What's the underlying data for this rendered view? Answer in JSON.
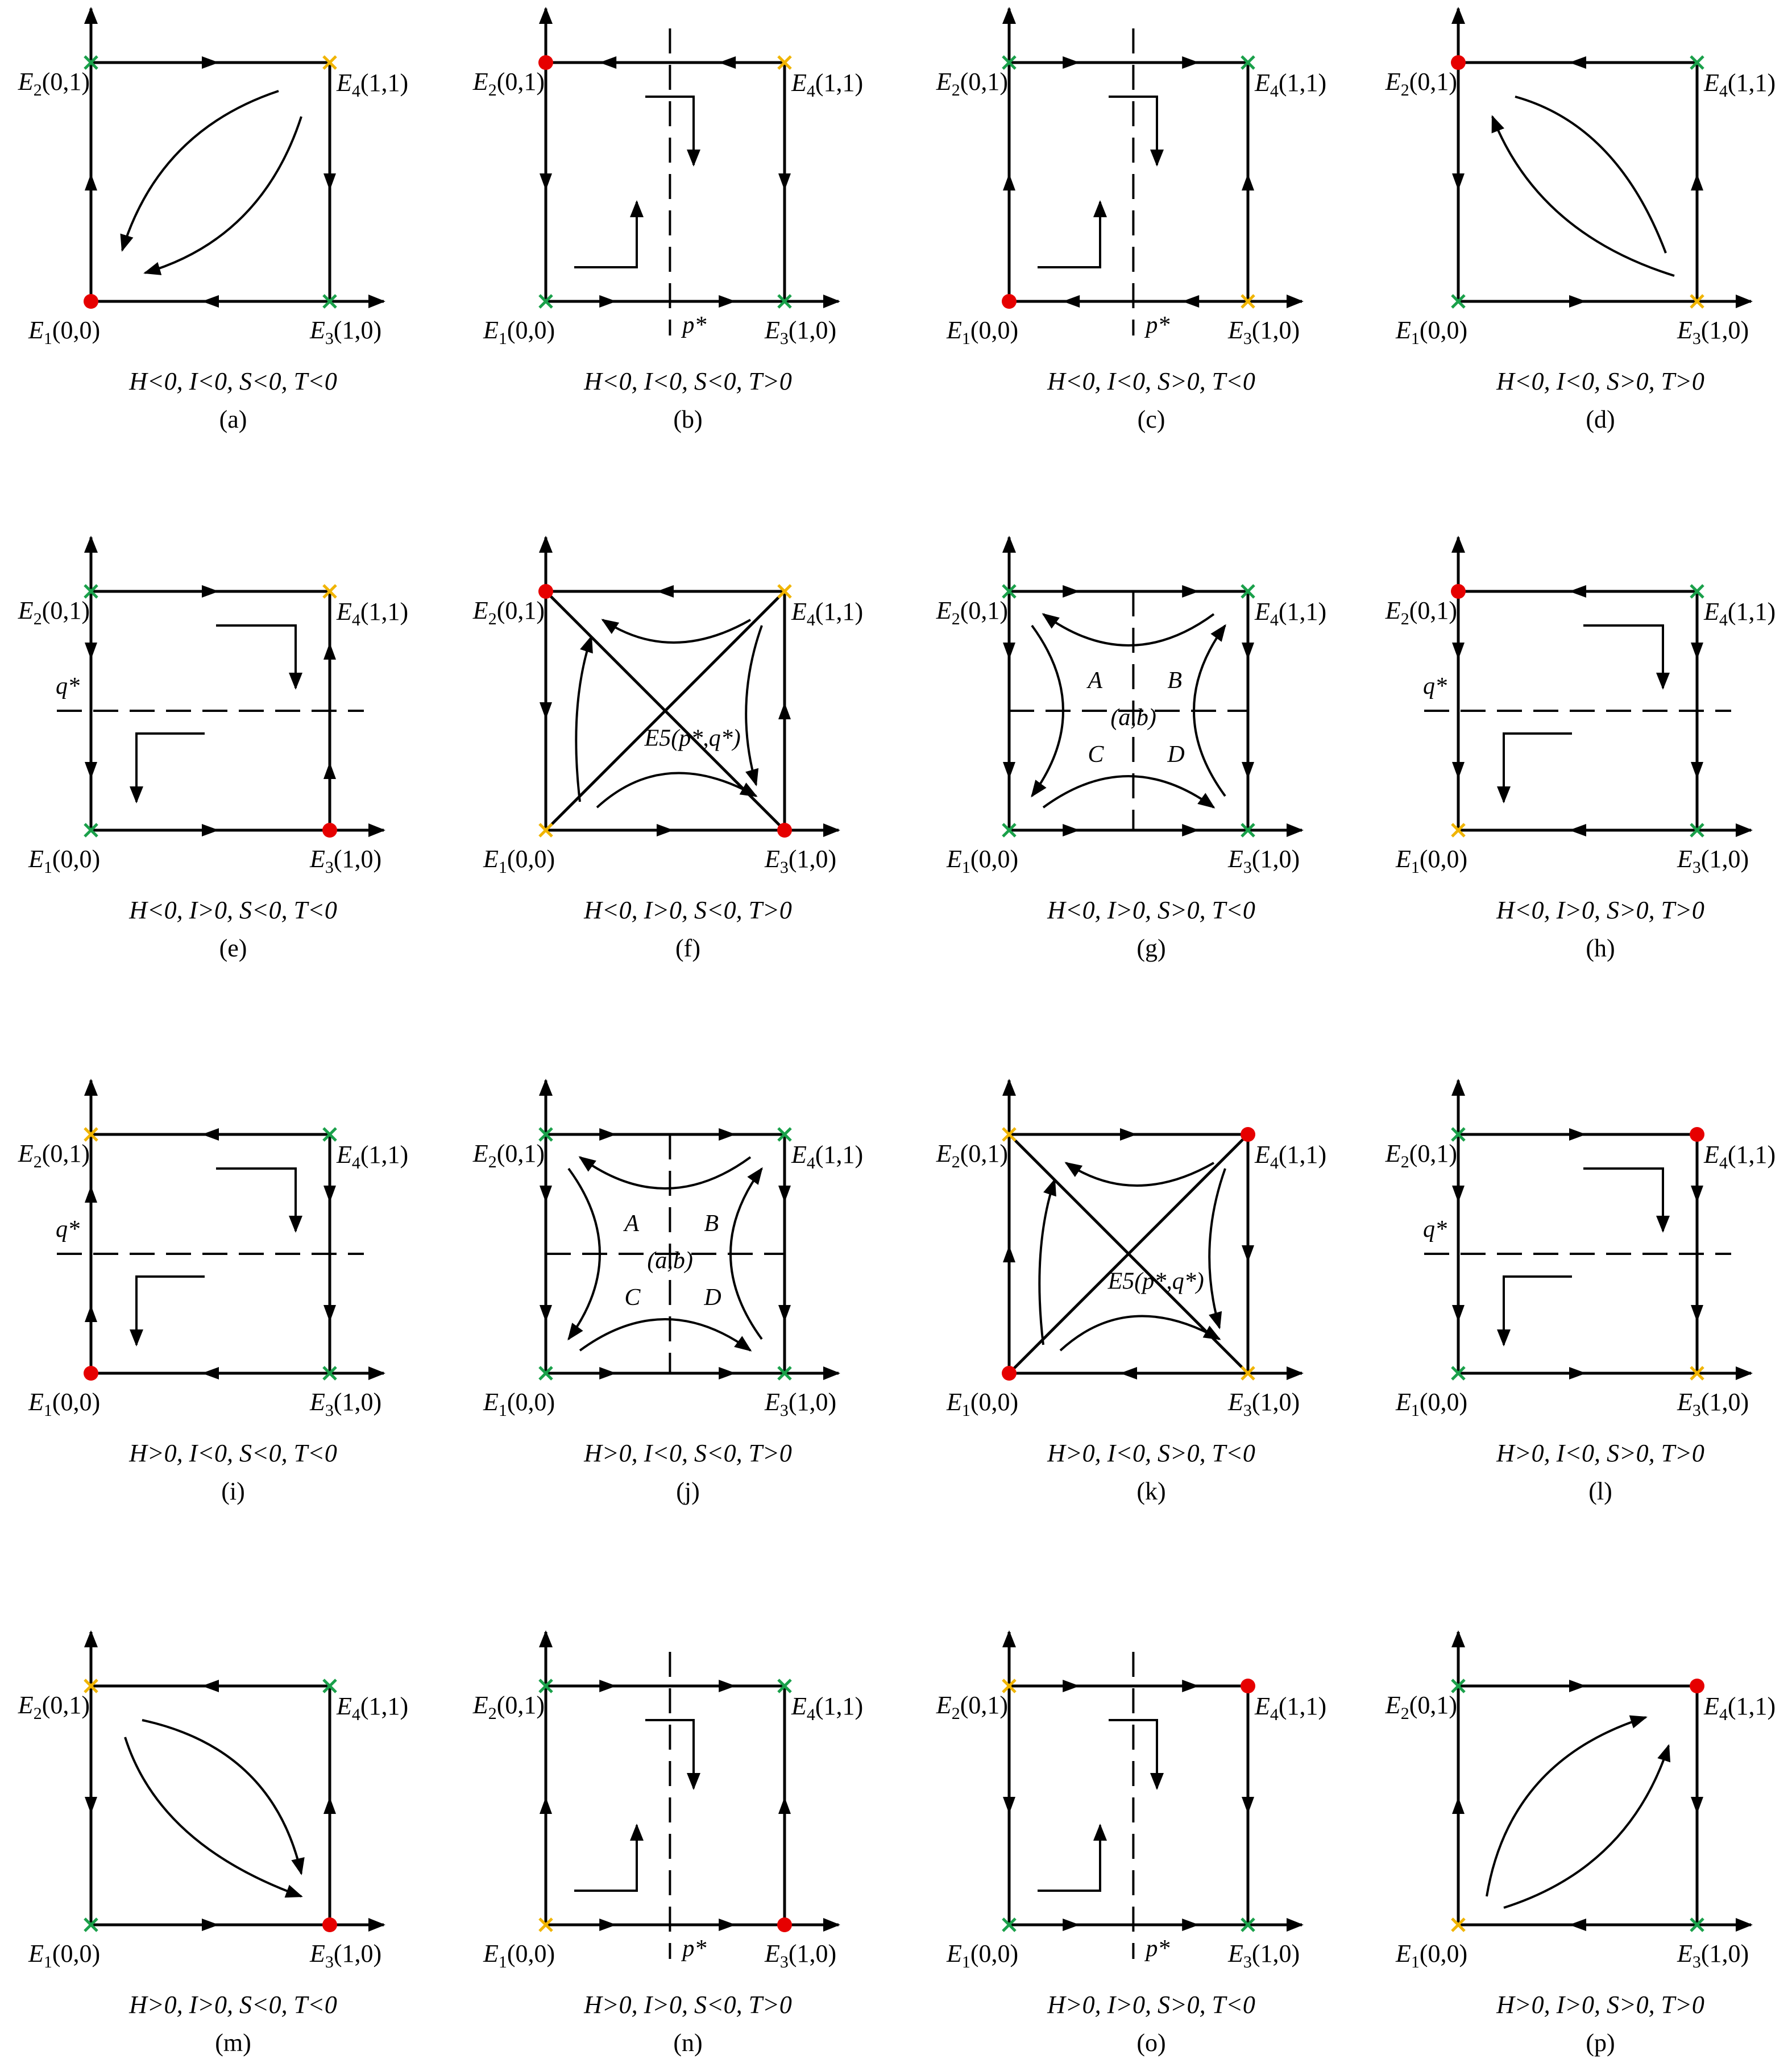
{
  "colors": {
    "line": "#000000",
    "stable": "#e60000",
    "saddle": "#f0b400",
    "unstable": "#1aa04a"
  },
  "point_labels": {
    "E1": "E1(0,0)",
    "E2": "E2(0,1)",
    "E3": "E3(1,0)",
    "E4": "E4(1,1)"
  },
  "symbols": {
    "p_star": "p*",
    "q_star": "q*",
    "E5": "E5(p*,q*)",
    "center": "(a,b)",
    "regions": [
      "A",
      "B",
      "C",
      "D"
    ]
  },
  "legend_markers": {
    "stable": "red dot",
    "saddle": "yellow cross",
    "unstable": "green cross"
  },
  "panels": [
    {
      "tag": "(a)",
      "condition": "H<0, I<0, S<0, T<0",
      "E1": "stable",
      "E2": "unstable",
      "E3": "unstable",
      "E4": "saddle",
      "type": "diag"
    },
    {
      "tag": "(b)",
      "condition": "H<0, I<0, S<0, T>0",
      "E1": "unstable",
      "E2": "stable",
      "E3": "unstable",
      "E4": "saddle",
      "type": "vline"
    },
    {
      "tag": "(c)",
      "condition": "H<0, I<0, S>0, T<0",
      "E1": "stable",
      "E2": "unstable",
      "E3": "saddle",
      "E4": "unstable",
      "type": "vline"
    },
    {
      "tag": "(d)",
      "condition": "H<0, I<0, S>0, T>0",
      "E1": "unstable",
      "E2": "stable",
      "E3": "saddle",
      "E4": "unstable",
      "type": "diag"
    },
    {
      "tag": "(e)",
      "condition": "H<0, I>0, S<0, T<0",
      "E1": "unstable",
      "E2": "unstable",
      "E3": "stable",
      "E4": "saddle",
      "type": "hline"
    },
    {
      "tag": "(f)",
      "condition": "H<0, I>0, S<0, T>0",
      "E1": "saddle",
      "E2": "stable",
      "E3": "stable",
      "E4": "saddle",
      "type": "saddle"
    },
    {
      "tag": "(g)",
      "condition": "H<0, I>0, S>0, T<0",
      "E1": "unstable",
      "E2": "unstable",
      "E3": "unstable",
      "E4": "unstable",
      "type": "center"
    },
    {
      "tag": "(h)",
      "condition": "H<0, I>0, S>0, T>0",
      "E1": "saddle",
      "E2": "stable",
      "E3": "unstable",
      "E4": "unstable",
      "type": "hline"
    },
    {
      "tag": "(i)",
      "condition": "H>0, I<0, S<0, T<0",
      "E1": "stable",
      "E2": "saddle",
      "E3": "unstable",
      "E4": "unstable",
      "type": "hline"
    },
    {
      "tag": "(j)",
      "condition": "H>0, I<0, S<0, T>0",
      "E1": "unstable",
      "E2": "unstable",
      "E3": "unstable",
      "E4": "unstable",
      "type": "center"
    },
    {
      "tag": "(k)",
      "condition": "H>0, I<0, S>0, T<0",
      "E1": "stable",
      "E2": "saddle",
      "E3": "saddle",
      "E4": "stable",
      "type": "saddle"
    },
    {
      "tag": "(l)",
      "condition": "H>0, I<0, S>0, T>0",
      "E1": "unstable",
      "E2": "unstable",
      "E3": "saddle",
      "E4": "stable",
      "type": "hline"
    },
    {
      "tag": "(m)",
      "condition": "H>0, I>0, S<0, T<0",
      "E1": "unstable",
      "E2": "saddle",
      "E3": "stable",
      "E4": "unstable",
      "type": "diag"
    },
    {
      "tag": "(n)",
      "condition": "H>0, I>0, S<0, T>0",
      "E1": "saddle",
      "E2": "unstable",
      "E3": "stable",
      "E4": "unstable",
      "type": "vline"
    },
    {
      "tag": "(o)",
      "condition": "H>0, I>0, S>0, T<0",
      "E1": "unstable",
      "E2": "saddle",
      "E3": "unstable",
      "E4": "stable",
      "type": "vline"
    },
    {
      "tag": "(p)",
      "condition": "H>0, I>0, S>0, T>0",
      "E1": "saddle",
      "E2": "unstable",
      "E3": "unstable",
      "E4": "stable",
      "type": "diag"
    }
  ]
}
